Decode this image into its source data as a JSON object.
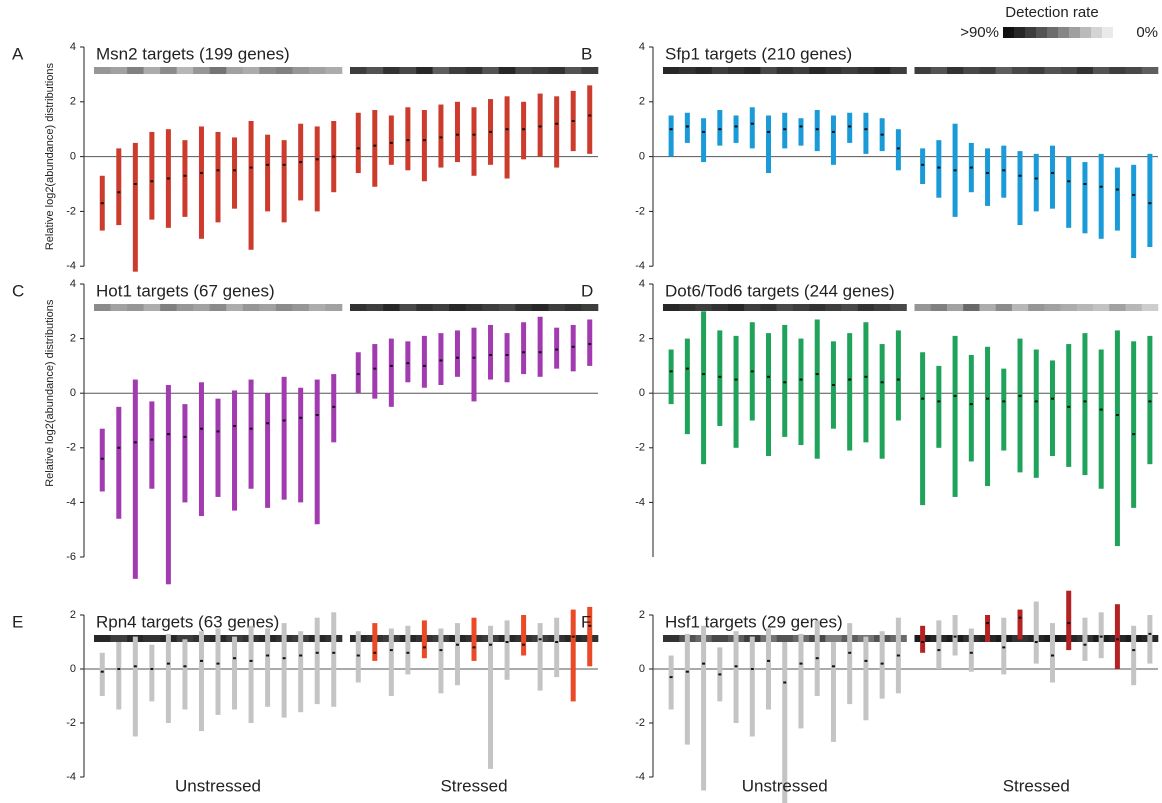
{
  "chart_data": [
    {
      "type": "errorbar",
      "letter": "A",
      "title": "Msn2 targets (199 genes)",
      "y_label": "Relative log2(abundance) distributions",
      "ylim": [
        -4,
        4
      ],
      "yticks": [
        -4,
        -2,
        0,
        2,
        4
      ],
      "groups": [
        {
          "color": "#cc3b2b",
          "medians": [
            -1.7,
            -1.3,
            -1.0,
            -0.9,
            -0.8,
            -0.7,
            -0.6,
            -0.5,
            -0.5,
            -0.4,
            -0.3,
            -0.3,
            -0.2,
            -0.1,
            0.0
          ],
          "lows": [
            -2.7,
            -2.5,
            -4.2,
            -2.3,
            -2.6,
            -2.2,
            -3.0,
            -2.4,
            -1.9,
            -3.4,
            -2.0,
            -2.4,
            -1.6,
            -2.0,
            -1.3
          ],
          "highs": [
            -0.7,
            0.3,
            0.5,
            0.9,
            1.0,
            0.6,
            1.1,
            0.9,
            0.7,
            1.3,
            0.8,
            0.6,
            1.2,
            1.1,
            1.3
          ],
          "detection": [
            40,
            35,
            50,
            30,
            45,
            25,
            40,
            55,
            35,
            30,
            45,
            50,
            40,
            35,
            30
          ]
        },
        {
          "color": "#cc3b2b",
          "medians": [
            0.3,
            0.4,
            0.5,
            0.6,
            0.6,
            0.7,
            0.8,
            0.8,
            0.9,
            1.0,
            1.0,
            1.1,
            1.2,
            1.3,
            1.5
          ],
          "lows": [
            -0.6,
            -1.1,
            -0.3,
            -0.5,
            -0.9,
            -0.4,
            -0.2,
            -0.7,
            -0.3,
            -0.8,
            -0.1,
            0.0,
            -0.4,
            0.2,
            0.1
          ],
          "highs": [
            1.6,
            1.7,
            1.5,
            1.8,
            1.7,
            1.9,
            2.0,
            1.8,
            2.1,
            2.2,
            2.0,
            2.3,
            2.2,
            2.4,
            2.6
          ],
          "detection": [
            80,
            70,
            85,
            75,
            90,
            65,
            80,
            85,
            70,
            90,
            75,
            80,
            85,
            70,
            80
          ]
        }
      ]
    },
    {
      "type": "errorbar",
      "letter": "B",
      "title": "Sfp1 targets (210 genes)",
      "ylim": [
        -4,
        4
      ],
      "yticks": [
        -4,
        -2,
        0,
        2,
        4
      ],
      "groups": [
        {
          "color": "#1a9ad6",
          "medians": [
            1.0,
            1.1,
            0.9,
            1.0,
            1.1,
            1.2,
            0.9,
            1.0,
            1.1,
            1.0,
            0.9,
            1.1,
            1.0,
            0.8,
            0.3
          ],
          "lows": [
            0.0,
            0.5,
            -0.2,
            0.4,
            0.5,
            0.3,
            -0.6,
            0.3,
            0.4,
            0.2,
            -0.3,
            0.5,
            0.1,
            0.2,
            -0.5
          ],
          "highs": [
            1.5,
            1.6,
            1.4,
            1.7,
            1.5,
            1.8,
            1.5,
            1.6,
            1.4,
            1.7,
            1.5,
            1.6,
            1.6,
            1.4,
            1.0
          ],
          "detection": [
            90,
            85,
            90,
            80,
            85,
            90,
            75,
            85,
            80,
            90,
            85,
            80,
            85,
            90,
            80
          ]
        },
        {
          "color": "#1a9ad6",
          "medians": [
            -0.3,
            -0.4,
            -0.5,
            -0.4,
            -0.6,
            -0.5,
            -0.7,
            -0.8,
            -0.6,
            -0.9,
            -1.0,
            -1.1,
            -1.2,
            -1.4,
            -1.7
          ],
          "lows": [
            -1.0,
            -1.5,
            -2.2,
            -1.3,
            -1.8,
            -1.5,
            -2.5,
            -2.0,
            -1.9,
            -2.6,
            -2.8,
            -3.0,
            -2.7,
            -3.7,
            -3.3
          ],
          "highs": [
            0.3,
            0.6,
            1.2,
            0.5,
            0.3,
            0.4,
            0.2,
            0.1,
            0.4,
            0.0,
            -0.2,
            0.1,
            -0.4,
            -0.3,
            0.1
          ],
          "detection": [
            80,
            70,
            85,
            75,
            80,
            65,
            75,
            80,
            70,
            75,
            85,
            70,
            80,
            75,
            65
          ]
        }
      ]
    },
    {
      "type": "errorbar",
      "letter": "C",
      "title": "Hot1 targets (67 genes)",
      "y_label": "Relative log2(abundance) distributions",
      "ylim": [
        -6,
        4
      ],
      "yticks": [
        -6,
        -4,
        -2,
        0,
        2,
        4
      ],
      "groups": [
        {
          "color": "#a23bb0",
          "medians": [
            -2.4,
            -2.0,
            -1.8,
            -1.7,
            -1.5,
            -1.6,
            -1.3,
            -1.4,
            -1.2,
            -1.3,
            -1.1,
            -1.0,
            -0.9,
            -0.8,
            -0.5
          ],
          "lows": [
            -3.6,
            -4.6,
            -6.8,
            -3.5,
            -7.0,
            -4.0,
            -4.5,
            -3.8,
            -4.3,
            -3.5,
            -4.2,
            -3.9,
            -4.0,
            -4.8,
            -1.8
          ],
          "highs": [
            -1.3,
            -0.5,
            0.5,
            -0.3,
            0.3,
            -0.4,
            0.4,
            -0.2,
            0.1,
            0.5,
            0.0,
            0.6,
            0.2,
            0.5,
            0.7
          ],
          "detection": [
            45,
            35,
            40,
            30,
            50,
            40,
            35,
            45,
            30,
            40,
            35,
            45,
            40,
            30,
            35
          ]
        },
        {
          "color": "#a23bb0",
          "medians": [
            0.7,
            0.9,
            1.0,
            1.1,
            1.0,
            1.2,
            1.3,
            1.3,
            1.4,
            1.4,
            1.5,
            1.5,
            1.6,
            1.7,
            1.8
          ],
          "lows": [
            0.0,
            -0.2,
            -0.5,
            0.4,
            0.2,
            0.3,
            0.6,
            -0.3,
            0.5,
            0.4,
            0.7,
            0.6,
            0.9,
            0.8,
            1.0
          ],
          "highs": [
            1.5,
            1.8,
            2.0,
            1.9,
            2.1,
            2.2,
            2.3,
            2.4,
            2.5,
            2.2,
            2.6,
            2.8,
            2.4,
            2.5,
            2.7
          ],
          "detection": [
            85,
            80,
            90,
            75,
            85,
            80,
            90,
            85,
            80,
            75,
            85,
            90,
            80,
            85,
            80
          ]
        }
      ]
    },
    {
      "type": "errorbar",
      "letter": "D",
      "title": "Dot6/Tod6  targets (244 genes)",
      "ylim": [
        -6,
        4
      ],
      "yticks": [
        -4,
        -2,
        0,
        2,
        4
      ],
      "groups": [
        {
          "color": "#1fa25a",
          "medians": [
            0.8,
            0.9,
            0.7,
            0.6,
            0.5,
            0.8,
            0.6,
            0.4,
            0.5,
            0.7,
            0.3,
            0.5,
            0.6,
            0.4,
            0.5
          ],
          "lows": [
            -0.4,
            -1.5,
            -2.6,
            -1.2,
            -2.0,
            -1.0,
            -2.3,
            -1.6,
            -1.9,
            -2.4,
            -1.3,
            -2.1,
            -1.8,
            -2.4,
            -1.0
          ],
          "highs": [
            1.6,
            2.0,
            3.0,
            2.3,
            2.1,
            2.6,
            2.2,
            2.5,
            2.0,
            2.7,
            1.9,
            2.2,
            2.6,
            1.8,
            2.3
          ],
          "detection": [
            90,
            85,
            80,
            85,
            90,
            80,
            85,
            75,
            80,
            85,
            80,
            75,
            85,
            80,
            75
          ]
        },
        {
          "color": "#1fa25a",
          "medians": [
            -0.2,
            -0.3,
            -0.1,
            -0.4,
            -0.2,
            -0.3,
            -0.1,
            -0.3,
            -0.2,
            -0.5,
            -0.3,
            -0.6,
            -0.8,
            -1.5,
            -0.3
          ],
          "lows": [
            -4.1,
            -2.0,
            -3.8,
            -2.5,
            -3.4,
            -2.1,
            -2.9,
            -3.1,
            -2.3,
            -2.7,
            -3.0,
            -3.5,
            -5.6,
            -4.2,
            -2.6
          ],
          "highs": [
            1.5,
            1.0,
            2.1,
            1.4,
            1.7,
            0.9,
            2.0,
            1.6,
            1.2,
            1.8,
            2.2,
            1.6,
            2.3,
            1.9,
            2.1
          ],
          "detection": [
            40,
            50,
            35,
            60,
            30,
            45,
            25,
            40,
            35,
            30,
            25,
            20,
            35,
            25,
            15
          ]
        }
      ]
    },
    {
      "type": "errorbar",
      "letter": "E",
      "title": "Rpn4 targets (63 genes)",
      "ylim": [
        -4,
        2
      ],
      "yticks": [
        -4,
        -2,
        0,
        2
      ],
      "groups": [
        {
          "name": "Unstressed",
          "color": "#c4c4c4",
          "medians": [
            -0.1,
            0.0,
            0.1,
            0.0,
            0.2,
            0.1,
            0.3,
            0.2,
            0.4,
            0.3,
            0.5,
            0.4,
            0.5,
            0.6,
            0.6
          ],
          "lows": [
            -1.0,
            -1.5,
            -2.5,
            -1.2,
            -2.0,
            -1.5,
            -2.3,
            -1.7,
            -1.5,
            -2.0,
            -1.4,
            -1.8,
            -1.6,
            -1.3,
            -1.4
          ],
          "highs": [
            0.6,
            1.0,
            1.2,
            0.9,
            1.3,
            1.1,
            1.4,
            1.5,
            1.2,
            1.6,
            1.5,
            1.7,
            1.4,
            1.9,
            2.1
          ],
          "detection": [
            90,
            80,
            90,
            85,
            90,
            80,
            85,
            90,
            80,
            85,
            90,
            85,
            80,
            90,
            85
          ]
        },
        {
          "name": "Stressed",
          "color": "#c4c4c4",
          "highlight": {
            "color": "#ea4a25",
            "indices": [
              1,
              4,
              7,
              10,
              13,
              14
            ]
          },
          "medians": [
            0.5,
            0.6,
            0.7,
            0.6,
            0.8,
            0.7,
            0.9,
            0.8,
            0.9,
            1.0,
            0.9,
            1.1,
            1.0,
            1.2,
            1.6
          ],
          "lows": [
            -0.5,
            0.3,
            -1.0,
            -0.2,
            0.4,
            -0.9,
            -0.6,
            0.3,
            -3.7,
            -0.4,
            0.5,
            -0.8,
            -0.3,
            -1.2,
            0.1
          ],
          "highs": [
            1.4,
            1.7,
            1.5,
            1.6,
            1.8,
            1.5,
            1.7,
            1.9,
            1.6,
            1.8,
            2.0,
            1.7,
            1.9,
            2.2,
            2.3
          ],
          "detection": [
            90,
            85,
            80,
            90,
            85,
            80,
            90,
            85,
            80,
            90,
            85,
            80,
            85,
            90,
            85
          ]
        }
      ]
    },
    {
      "type": "errorbar",
      "letter": "F",
      "title": "Hsf1 targets (29 genes)",
      "ylim": [
        -4,
        2
      ],
      "yticks": [
        -4,
        -2,
        0,
        2
      ],
      "groups": [
        {
          "name": "Unstressed",
          "color": "#c4c4c4",
          "medians": [
            -0.3,
            -0.1,
            0.2,
            -0.2,
            0.1,
            0.0,
            0.3,
            -0.5,
            0.2,
            0.4,
            0.1,
            0.6,
            0.3,
            0.2,
            0.5
          ],
          "lows": [
            -1.5,
            -2.8,
            -4.5,
            -1.2,
            -2.0,
            -2.5,
            -1.5,
            -5.0,
            -2.2,
            -1.0,
            -2.7,
            -1.3,
            -1.9,
            -1.1,
            -0.9
          ],
          "highs": [
            0.5,
            1.3,
            1.6,
            0.8,
            1.4,
            1.2,
            1.5,
            1.0,
            1.3,
            1.8,
            1.0,
            1.7,
            1.2,
            1.4,
            1.9
          ],
          "detection": [
            85,
            70,
            60,
            75,
            65,
            80,
            55,
            70,
            60,
            75,
            50,
            65,
            55,
            70,
            60
          ]
        },
        {
          "name": "Stressed",
          "color": "#c4c4c4",
          "highlight": {
            "color": "#b52224",
            "indices": [
              0,
              4,
              6,
              9,
              12
            ]
          },
          "medians": [
            1.0,
            0.7,
            1.2,
            0.6,
            1.7,
            0.8,
            1.9,
            1.0,
            0.5,
            1.7,
            0.9,
            1.2,
            1.1,
            0.7,
            1.3
          ],
          "lows": [
            0.6,
            0.0,
            0.5,
            -0.1,
            1.0,
            -0.2,
            1.1,
            0.2,
            -0.5,
            0.7,
            0.3,
            0.4,
            0.0,
            -0.6,
            0.2
          ],
          "highs": [
            1.6,
            1.8,
            2.0,
            1.5,
            2.0,
            1.9,
            2.2,
            2.5,
            1.7,
            2.9,
            1.9,
            2.1,
            2.4,
            1.6,
            2.0
          ],
          "detection": [
            95,
            90,
            95,
            85,
            90,
            95,
            85,
            90,
            95,
            90,
            85,
            95,
            90,
            95,
            90
          ]
        }
      ]
    }
  ],
  "legend": {
    "title": "Detection rate",
    "max_label": ">90%",
    "min_label": "0%"
  }
}
